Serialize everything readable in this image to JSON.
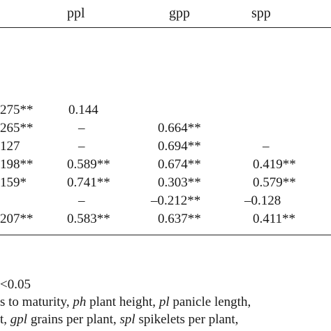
{
  "table": {
    "headers": [
      "ppl",
      "gpp",
      "spp"
    ],
    "rows": [
      {
        "c0": "275**",
        "c1": "0.144",
        "c2": "",
        "c3": ""
      },
      {
        "c0": "265**",
        "c1": "–",
        "c2": "0.664**",
        "c3": ""
      },
      {
        "c0": "127",
        "c1": "–",
        "c2": "0.694**",
        "c3": "–"
      },
      {
        "c0": "198**",
        "c1": "0.589**",
        "c2": "0.674**",
        "c3": "0.419**"
      },
      {
        "c0": "159*",
        "c1": "0.741**",
        "c2": "0.303**",
        "c3": "0.579**"
      },
      {
        "c0": "",
        "c1": "–",
        "c2": "–0.212**",
        "c3": "–0.128"
      },
      {
        "c0": "207**",
        "c1": "0.583**",
        "c2": "0.637**",
        "c3": "0.411**"
      }
    ]
  },
  "footnotes": {
    "line1": "<0.05",
    "line2": {
      "p1": "s to maturity, ",
      "ph": "ph",
      "p2": " plant height, ",
      "pl": "pl",
      "p3": " panicle length,"
    },
    "line3": {
      "p1": "t, ",
      "gpl": "gpl",
      "p2": " grains per plant, ",
      "spl": "spl",
      "p3": " spikelets per plant,"
    }
  }
}
